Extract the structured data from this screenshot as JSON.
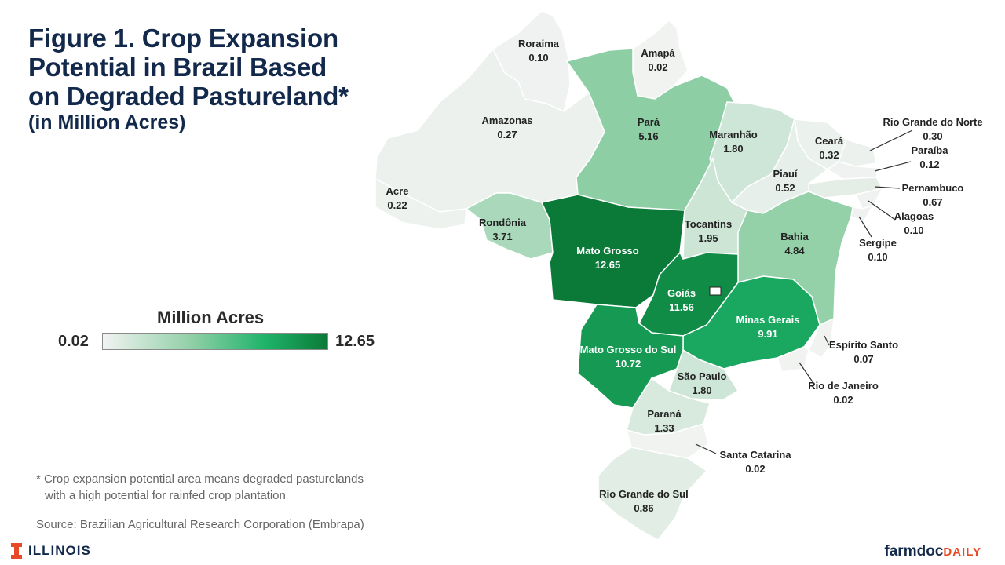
{
  "title": {
    "lines": [
      "Figure 1. Crop Expansion",
      "Potential in Brazil Based",
      "on Degraded Pastureland*"
    ],
    "subtitle": "(in Million Acres)"
  },
  "legend": {
    "title": "Million Acres",
    "min": "0.02",
    "max": "12.65"
  },
  "footnote": {
    "line1": "* Crop expansion potential area means degraded pasturelands",
    "line2": "with a high potential for rainfed crop plantation"
  },
  "source": "Source: Brazilian Agricultural Research Corporation (Embrapa)",
  "logos": {
    "illinois": "ILLINOIS",
    "farmdoc": "farmdoc",
    "farmdoc_suffix": "DAILY"
  },
  "colors": {
    "min_fill": "#eef0ee",
    "max_fill": "#0b7a38",
    "title": "#13294b",
    "brand_orange": "#e84a27",
    "border": "#ffffff"
  },
  "states": [
    {
      "name": "Roraima",
      "value": "0.10"
    },
    {
      "name": "Amapá",
      "value": "0.02"
    },
    {
      "name": "Amazonas",
      "value": "0.27"
    },
    {
      "name": "Pará",
      "value": "5.16"
    },
    {
      "name": "Maranhão",
      "value": "1.80"
    },
    {
      "name": "Ceará",
      "value": "0.32"
    },
    {
      "name": "Rio Grande do Norte",
      "value": "0.30"
    },
    {
      "name": "Paraíba",
      "value": "0.12"
    },
    {
      "name": "Pernambuco",
      "value": "0.67"
    },
    {
      "name": "Alagoas",
      "value": "0.10"
    },
    {
      "name": "Sergipe",
      "value": "0.10"
    },
    {
      "name": "Piauí",
      "value": "0.52"
    },
    {
      "name": "Acre",
      "value": "0.22"
    },
    {
      "name": "Rondônia",
      "value": "3.71"
    },
    {
      "name": "Mato Grosso",
      "value": "12.65"
    },
    {
      "name": "Tocantins",
      "value": "1.95"
    },
    {
      "name": "Bahia",
      "value": "4.84"
    },
    {
      "name": "Goiás",
      "value": "11.56"
    },
    {
      "name": "Minas Gerais",
      "value": "9.91"
    },
    {
      "name": "Espírito Santo",
      "value": "0.07"
    },
    {
      "name": "Mato Grosso do Sul",
      "value": "10.72"
    },
    {
      "name": "São Paulo",
      "value": "1.80"
    },
    {
      "name": "Rio de Janeiro",
      "value": "0.02"
    },
    {
      "name": "Paraná",
      "value": "1.33"
    },
    {
      "name": "Santa Catarina",
      "value": "0.02"
    },
    {
      "name": "Rio Grande do Sul",
      "value": "0.86"
    }
  ]
}
